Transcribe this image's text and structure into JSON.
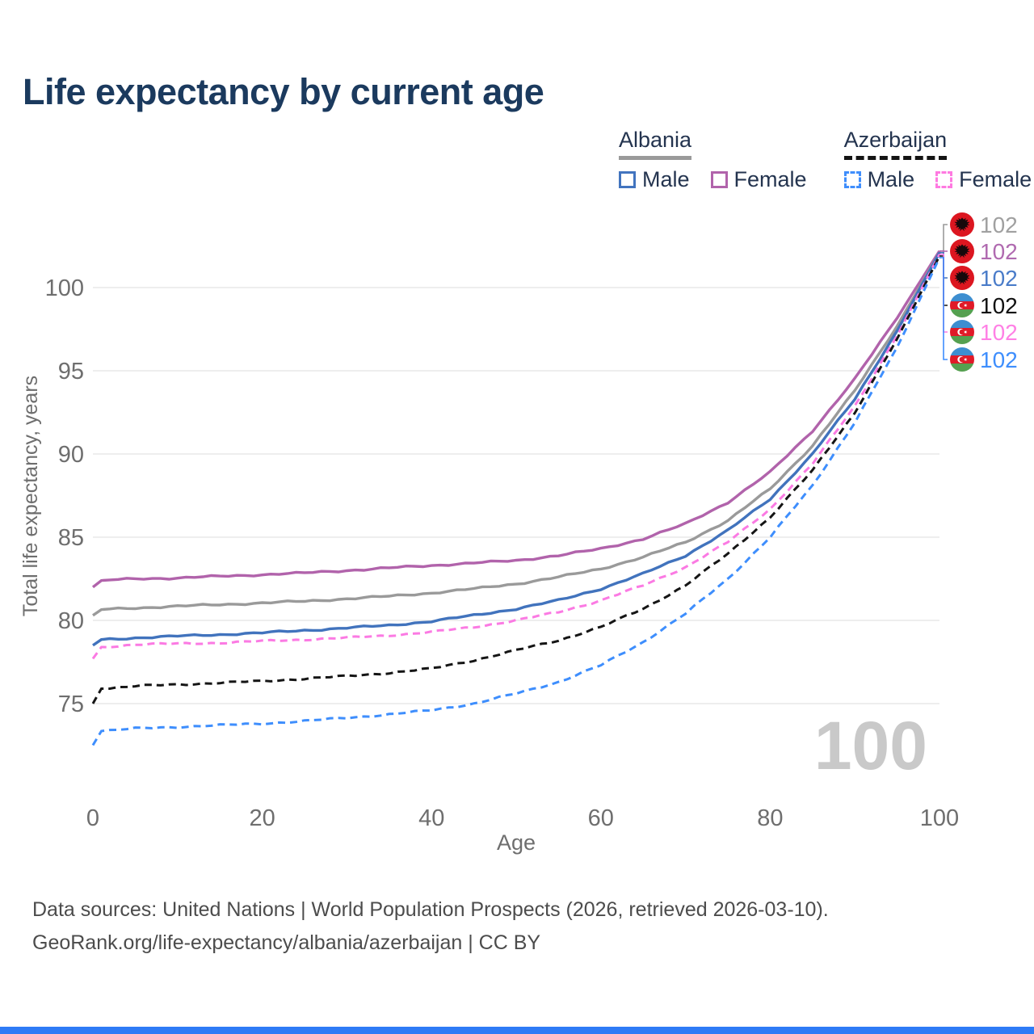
{
  "page": {
    "title": "Life expectancy by current age",
    "accent_bar_color": "#2e7bf6",
    "title_color": "#1b3a5e"
  },
  "legend": {
    "groups": [
      {
        "label": "Albania",
        "underline_style": "solid",
        "underline_color": "#9a9a9a",
        "items": [
          {
            "label": "Male",
            "color": "#4274bf",
            "dashed": false
          },
          {
            "label": "Female",
            "color": "#b163ab",
            "dashed": false
          }
        ]
      },
      {
        "label": "Azerbaijan",
        "underline_style": "dashed",
        "underline_color": "#141414",
        "items": [
          {
            "label": "Male",
            "color": "#3f8efc",
            "dashed": true
          },
          {
            "label": "Female",
            "color": "#ff7ae1",
            "dashed": true
          }
        ]
      }
    ]
  },
  "chart_data": {
    "type": "line",
    "title": "Life expectancy by current age",
    "xlabel": "Age",
    "ylabel": "Total life expectancy, years",
    "x_ticks": [
      0,
      20,
      40,
      60,
      80,
      100
    ],
    "y_ticks": [
      75,
      80,
      85,
      90,
      95,
      100
    ],
    "xlim": [
      0,
      100
    ],
    "ylim": [
      72,
      103.5
    ],
    "grid": "horizontal-only",
    "grid_color": "#e9e9e9",
    "axis_text_color": "#6e6e6e",
    "x_indicator_label": "100",
    "x_indicator_color": "#c9c9c9",
    "ages": [
      0,
      1,
      5,
      10,
      15,
      20,
      25,
      30,
      35,
      40,
      45,
      50,
      55,
      60,
      65,
      70,
      75,
      80,
      85,
      90,
      95,
      100
    ],
    "series": [
      {
        "name": "Albania Female",
        "country": "Albania",
        "sex": "female",
        "color": "#b163ab",
        "dashed": false,
        "values": [
          82.0,
          82.4,
          82.5,
          82.55,
          82.65,
          82.75,
          82.85,
          83.0,
          83.15,
          83.3,
          83.45,
          83.6,
          83.9,
          84.3,
          84.9,
          85.8,
          87.1,
          88.9,
          91.4,
          94.5,
          98.2,
          102.2
        ]
      },
      {
        "name": "Albania Total",
        "country": "Albania",
        "sex": "total",
        "color": "#9a9a9a",
        "dashed": false,
        "values": [
          80.3,
          80.65,
          80.75,
          80.85,
          80.95,
          81.05,
          81.15,
          81.3,
          81.45,
          81.65,
          81.9,
          82.2,
          82.6,
          83.1,
          83.8,
          84.7,
          86.0,
          87.9,
          90.5,
          93.8,
          97.7,
          102.1
        ]
      },
      {
        "name": "Albania Male",
        "country": "Albania",
        "sex": "male",
        "color": "#4173bd",
        "dashed": false,
        "values": [
          78.5,
          78.85,
          78.95,
          79.05,
          79.15,
          79.25,
          79.4,
          79.55,
          79.7,
          79.95,
          80.3,
          80.7,
          81.2,
          81.9,
          82.8,
          83.9,
          85.4,
          87.3,
          90.0,
          93.3,
          97.4,
          102.1
        ]
      },
      {
        "name": "Azerbaijan Female",
        "country": "Azerbaijan",
        "sex": "female",
        "color": "#fb7ae3",
        "dashed": true,
        "values": [
          77.7,
          78.4,
          78.55,
          78.6,
          78.65,
          78.75,
          78.85,
          78.95,
          79.1,
          79.3,
          79.6,
          80.0,
          80.5,
          81.2,
          82.1,
          83.2,
          84.7,
          86.7,
          89.4,
          92.9,
          97.1,
          102.0
        ]
      },
      {
        "name": "Azerbaijan Total",
        "country": "Azerbaijan",
        "sex": "total",
        "color": "#151515",
        "dashed": true,
        "values": [
          75.0,
          75.9,
          76.05,
          76.15,
          76.25,
          76.35,
          76.5,
          76.65,
          76.85,
          77.1,
          77.6,
          78.2,
          78.8,
          79.6,
          80.7,
          82.1,
          84.0,
          86.2,
          89.0,
          92.5,
          96.9,
          101.9
        ]
      },
      {
        "name": "Azerbaijan Male",
        "country": "Azerbaijan",
        "sex": "male",
        "color": "#3e8efd",
        "dashed": true,
        "values": [
          72.5,
          73.35,
          73.5,
          73.6,
          73.7,
          73.8,
          73.95,
          74.15,
          74.35,
          74.6,
          75.0,
          75.6,
          76.3,
          77.3,
          78.7,
          80.4,
          82.5,
          85.0,
          88.1,
          91.9,
          96.4,
          101.8
        ]
      }
    ],
    "end_labels": [
      {
        "text": "102",
        "color": "#a0a0a0",
        "flag": "albania",
        "series_index": 1
      },
      {
        "text": "102",
        "color": "#b06ab0",
        "flag": "albania",
        "series_index": 0
      },
      {
        "text": "102",
        "color": "#4a7cc9",
        "flag": "albania",
        "series_index": 2
      },
      {
        "text": "102",
        "color": "#111111",
        "flag": "azerbaijan",
        "series_index": 4
      },
      {
        "text": "102",
        "color": "#ff80e5",
        "flag": "azerbaijan",
        "series_index": 3
      },
      {
        "text": "102",
        "color": "#3e8efd",
        "flag": "azerbaijan",
        "series_index": 5
      }
    ],
    "legend_position": "top-right"
  },
  "footer": {
    "line1": "Data sources: United Nations | World Population Prospects (2026, retrieved 2026-03-10).",
    "line2": "GeoRank.org/life-expectancy/albania/azerbaijan | CC BY"
  }
}
